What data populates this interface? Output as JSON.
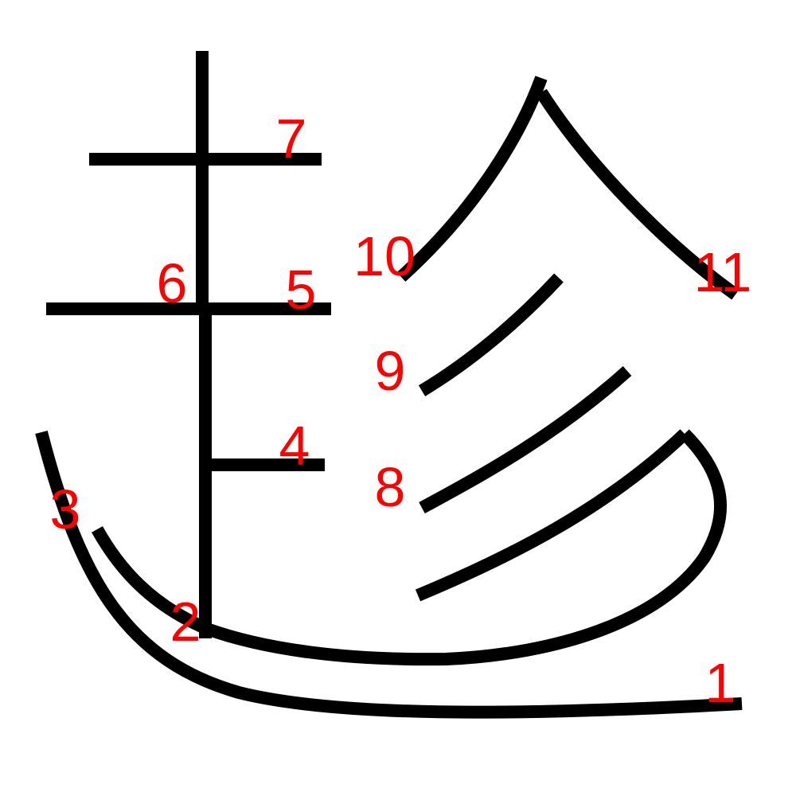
{
  "diagram": {
    "stroke_color": "#000000",
    "label_color": "#ff0000",
    "background": "#ffffff",
    "stroke_count": 11,
    "labels": {
      "s1": "1",
      "s2": "2",
      "s3": "3",
      "s4": "4",
      "s5": "5",
      "s6": "6",
      "s7": "7",
      "s8": "8",
      "s9": "9",
      "s10": "10",
      "s11": "11"
    }
  }
}
